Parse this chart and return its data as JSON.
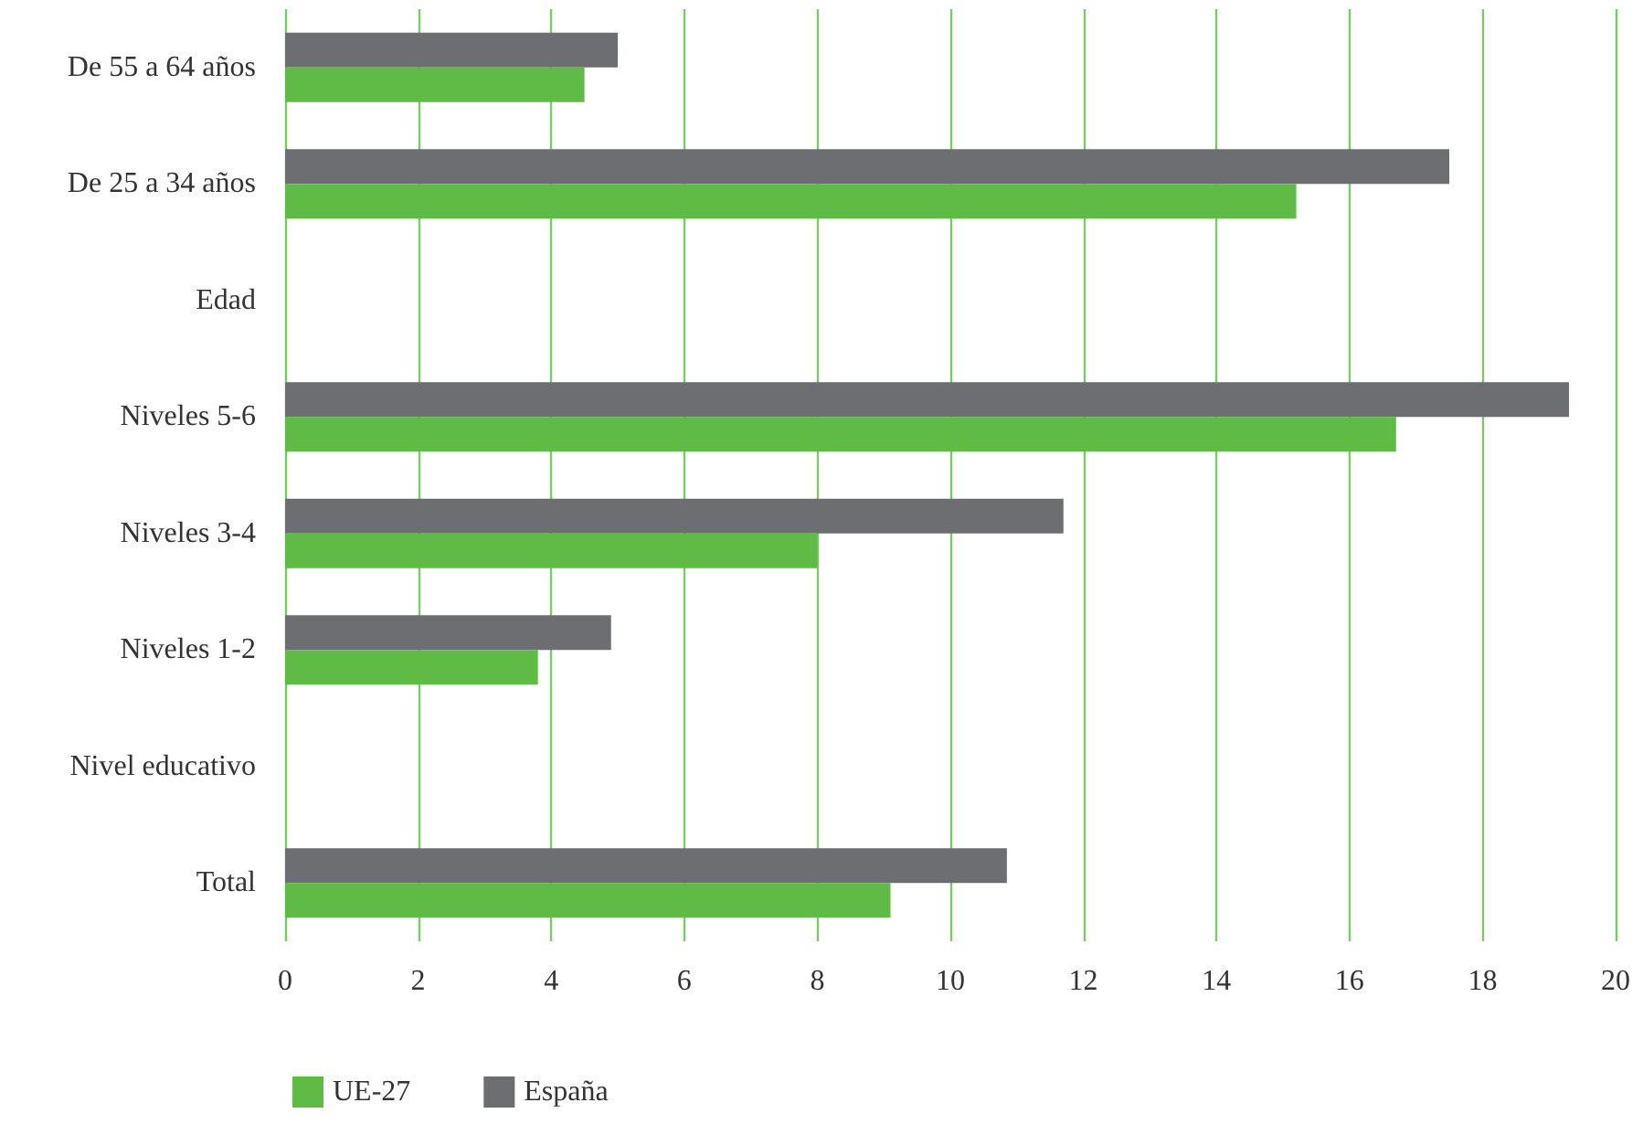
{
  "chart_data": {
    "type": "bar",
    "orientation": "horizontal",
    "categories": [
      "De 55 a 64 años",
      "De 25 a 34 años",
      "Edad",
      "Niveles 5-6",
      "Niveles 3-4",
      "Niveles 1-2",
      "Nivel educativo",
      "Total"
    ],
    "series": [
      {
        "name": "UE-27",
        "color": "#5fba46",
        "values": [
          4.5,
          15.2,
          null,
          16.7,
          8.0,
          3.8,
          null,
          9.1
        ]
      },
      {
        "name": "España",
        "color": "#6d6e71",
        "values": [
          5.0,
          17.5,
          null,
          19.3,
          11.7,
          4.9,
          null,
          10.85
        ]
      }
    ],
    "xlim": [
      0,
      20
    ],
    "xticks": [
      0,
      2,
      4,
      6,
      8,
      10,
      12,
      14,
      16,
      18,
      20
    ],
    "grid": "x",
    "legend": "bottom left"
  }
}
